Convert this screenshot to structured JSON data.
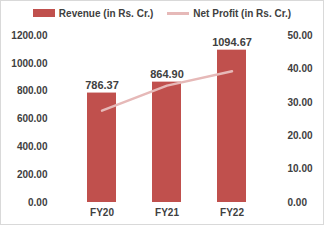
{
  "chart_data": {
    "type": "bar",
    "categories": [
      "FY20",
      "FY21",
      "FY22"
    ],
    "series": [
      {
        "name": "Revenue (in Rs. Cr.)",
        "type": "bar",
        "color": "#c0504d",
        "values": [
          786.37,
          864.9,
          1094.67
        ],
        "value_labels": [
          "786.37",
          "864.90",
          "1094.67"
        ]
      },
      {
        "name": "Net Profit (in Rs. Cr.)",
        "type": "line",
        "color": "#e6b9b8",
        "axis": "y2",
        "values": [
          27.5,
          35.0,
          39.3
        ]
      }
    ],
    "ylim": [
      0,
      1200
    ],
    "yticks": [
      {
        "value": 0,
        "label": "0.00"
      },
      {
        "value": 200,
        "label": "200.00"
      },
      {
        "value": 400,
        "label": "400.00"
      },
      {
        "value": 600,
        "label": "600.00"
      },
      {
        "value": 800,
        "label": "800.00"
      },
      {
        "value": 1000,
        "label": "1000.00"
      },
      {
        "value": 1200,
        "label": "1200.00"
      }
    ],
    "y2lim": [
      0,
      50
    ],
    "y2ticks": [
      {
        "value": 0,
        "label": "0.00"
      },
      {
        "value": 10,
        "label": "10.00"
      },
      {
        "value": 20,
        "label": "20.00"
      },
      {
        "value": 30,
        "label": "30.00"
      },
      {
        "value": 40,
        "label": "40.00"
      },
      {
        "value": 50,
        "label": "50.00"
      }
    ],
    "grid": false,
    "legend": "top",
    "data_labels": true
  }
}
